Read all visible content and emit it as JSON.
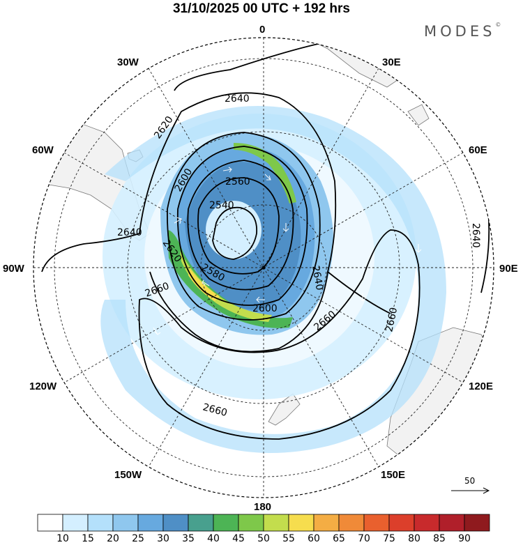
{
  "title": "31/10/2025  00 UTC  + 192 hrs",
  "brand": "MODES",
  "brand_mark": "©",
  "map": {
    "projection": "polar-stereographic-south",
    "longitude_labels": {
      "top": "0",
      "top_right": "30E",
      "right_upper": "60E",
      "right": "90E",
      "right_lower": "120E",
      "bottom_right": "150E",
      "bottom": "180",
      "bottom_left": "150W",
      "left_lower": "120W",
      "left": "90W",
      "left_upper": "60W",
      "top_left": "30W"
    },
    "contour_labels": [
      "2640",
      "2620",
      "2600",
      "2560",
      "2540",
      "2640",
      "2620",
      "2580",
      "2600",
      "2640",
      "2660",
      "2660",
      "2660",
      "2640",
      "2660"
    ],
    "wind_scale": {
      "value": "50",
      "icon": "arrow-right-icon"
    }
  },
  "colorbar": {
    "labels": [
      "10",
      "15",
      "20",
      "25",
      "30",
      "35",
      "40",
      "45",
      "50",
      "55",
      "60",
      "65",
      "70",
      "75",
      "80",
      "85",
      "90"
    ],
    "colors": [
      "#ffffff",
      "#d4efff",
      "#b4e0fb",
      "#8fc7ee",
      "#67a9df",
      "#4f8fc6",
      "#48a08e",
      "#4db455",
      "#7ec84a",
      "#c3dd4d",
      "#f6dd4e",
      "#f4ad44",
      "#f08a38",
      "#e9602e",
      "#dc3f2b",
      "#c82a2c",
      "#b01f2a",
      "#8f1a1e"
    ]
  }
}
